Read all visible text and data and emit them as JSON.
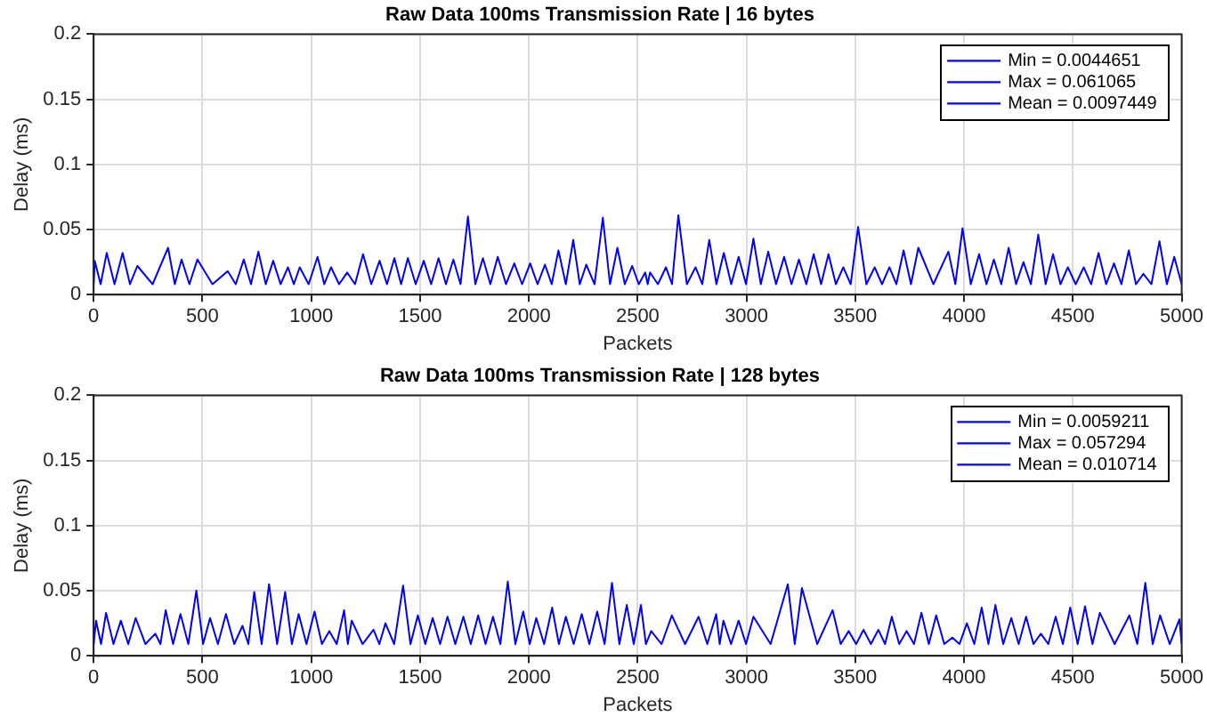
{
  "chart_data": [
    {
      "type": "line",
      "title": "Raw Data 100ms Transmission Rate | 16 bytes",
      "xlabel": "Packets",
      "ylabel": "Delay (ms)",
      "xlim": [
        0,
        5000
      ],
      "xticks": [
        0,
        500,
        1000,
        1500,
        2000,
        2500,
        3000,
        3500,
        4000,
        4500,
        5000
      ],
      "ylim": [
        0,
        0.2
      ],
      "yticks": [
        0,
        0.05,
        0.1,
        0.15,
        0.2
      ],
      "grid": true,
      "legend": "top right",
      "marker": "none",
      "line_style": "solid",
      "series": [
        {
          "name": "Min = 0.0044651",
          "color": "#0000ff",
          "x": [
            0,
            5,
            32,
            60,
            96,
            133,
            167,
            201,
            271,
            342,
            373,
            404,
            440,
            477,
            546,
            616,
            653,
            690,
            723,
            757,
            791,
            825,
            859,
            893,
            920,
            947,
            988,
            1029,
            1060,
            1091,
            1128,
            1165,
            1201,
            1238,
            1276,
            1314,
            1348,
            1382,
            1413,
            1444,
            1480,
            1517,
            1551,
            1585,
            1619,
            1653,
            1686,
            1720,
            1754,
            1789,
            1823,
            1857,
            1895,
            1933,
            1969,
            2006,
            2040,
            2074,
            2105,
            2136,
            2170,
            2204,
            2234,
            2264,
            2302,
            2340,
            2373,
            2407,
            2441,
            2475,
            2505,
            2535,
            2546,
            2557,
            2593,
            2630,
            2658,
            2687,
            2726,
            2766,
            2797,
            2829,
            2862,
            2896,
            2930,
            2964,
            2998,
            3032,
            3066,
            3100,
            3136,
            3173,
            3207,
            3241,
            3275,
            3309,
            3343,
            3377,
            3411,
            3445,
            3479,
            3513,
            3551,
            3589,
            3623,
            3657,
            3689,
            3722,
            3756,
            3790,
            3859,
            3928,
            3960,
            3993,
            4031,
            4069,
            4103,
            4137,
            4171,
            4205,
            4239,
            4273,
            4307,
            4341,
            4375,
            4409,
            4443,
            4477,
            4513,
            4550,
            4584,
            4618,
            4653,
            4689,
            4723,
            4757,
            4790,
            4824,
            4861,
            4898,
            4932,
            4966,
            5000
          ],
          "values": [
            0.008,
            0.026,
            0.008,
            0.032,
            0.008,
            0.032,
            0.008,
            0.022,
            0.008,
            0.036,
            0.008,
            0.027,
            0.008,
            0.027,
            0.008,
            0.018,
            0.008,
            0.027,
            0.008,
            0.033,
            0.008,
            0.026,
            0.008,
            0.021,
            0.008,
            0.021,
            0.008,
            0.029,
            0.008,
            0.021,
            0.008,
            0.017,
            0.008,
            0.031,
            0.008,
            0.026,
            0.008,
            0.028,
            0.008,
            0.028,
            0.008,
            0.026,
            0.008,
            0.028,
            0.008,
            0.027,
            0.008,
            0.06,
            0.008,
            0.028,
            0.008,
            0.029,
            0.008,
            0.024,
            0.008,
            0.024,
            0.008,
            0.023,
            0.008,
            0.034,
            0.008,
            0.042,
            0.008,
            0.023,
            0.008,
            0.059,
            0.008,
            0.036,
            0.008,
            0.022,
            0.008,
            0.017,
            0.008,
            0.017,
            0.008,
            0.021,
            0.008,
            0.061,
            0.008,
            0.021,
            0.008,
            0.042,
            0.008,
            0.032,
            0.008,
            0.029,
            0.008,
            0.043,
            0.008,
            0.033,
            0.008,
            0.029,
            0.008,
            0.027,
            0.008,
            0.031,
            0.008,
            0.031,
            0.008,
            0.021,
            0.008,
            0.052,
            0.008,
            0.021,
            0.008,
            0.021,
            0.008,
            0.034,
            0.008,
            0.036,
            0.008,
            0.033,
            0.008,
            0.051,
            0.008,
            0.031,
            0.008,
            0.027,
            0.008,
            0.036,
            0.008,
            0.025,
            0.008,
            0.046,
            0.008,
            0.031,
            0.008,
            0.021,
            0.008,
            0.021,
            0.008,
            0.032,
            0.008,
            0.024,
            0.008,
            0.034,
            0.008,
            0.016,
            0.008,
            0.041,
            0.008,
            0.029,
            0.008
          ]
        },
        {
          "name": "Max = 0.061065",
          "color": "#0000ff"
        },
        {
          "name": "Mean = 0.0097449",
          "color": "#0000ff"
        }
      ]
    },
    {
      "type": "line",
      "title": "Raw Data 100ms Transmission Rate | 128 bytes",
      "xlabel": "Packets",
      "ylabel": "Delay (ms)",
      "xlim": [
        0,
        5000
      ],
      "xticks": [
        0,
        500,
        1000,
        1500,
        2000,
        2500,
        3000,
        3500,
        4000,
        4500,
        5000
      ],
      "ylim": [
        0,
        0.2
      ],
      "yticks": [
        0,
        0.05,
        0.1,
        0.15,
        0.2
      ],
      "grid": true,
      "legend": "top right",
      "marker": "none",
      "line_style": "solid",
      "series": [
        {
          "name": "Min = 0.0059211",
          "color": "#0000ff",
          "x": [
            0,
            11,
            34,
            57,
            91,
            125,
            159,
            193,
            238,
            283,
            307,
            331,
            365,
            399,
            435,
            472,
            503,
            535,
            571,
            608,
            646,
            684,
            711,
            738,
            772,
            806,
            843,
            880,
            911,
            942,
            978,
            1015,
            1049,
            1083,
            1117,
            1151,
            1168,
            1186,
            1236,
            1286,
            1313,
            1341,
            1381,
            1422,
            1456,
            1490,
            1524,
            1558,
            1592,
            1626,
            1662,
            1699,
            1733,
            1767,
            1801,
            1835,
            1869,
            1903,
            1938,
            1974,
            2004,
            2034,
            2070,
            2107,
            2138,
            2170,
            2206,
            2243,
            2278,
            2314,
            2348,
            2382,
            2416,
            2450,
            2482,
            2515,
            2538,
            2562,
            2610,
            2657,
            2718,
            2780,
            2820,
            2861,
            2877,
            2894,
            2929,
            2964,
            2998,
            3032,
            3111,
            3190,
            3222,
            3255,
            3325,
            3396,
            3433,
            3470,
            3504,
            3538,
            3572,
            3606,
            3637,
            3668,
            3702,
            3736,
            3770,
            3804,
            3838,
            3872,
            3909,
            3946,
            3979,
            4013,
            4047,
            4081,
            4112,
            4144,
            4180,
            4217,
            4251,
            4285,
            4319,
            4353,
            4387,
            4421,
            4454,
            4488,
            4522,
            4556,
            4590,
            4624,
            4692,
            4760,
            4796,
            4833,
            4867,
            4901,
            4945,
            4990,
            5000
          ],
          "values": [
            0.009,
            0.027,
            0.009,
            0.033,
            0.009,
            0.027,
            0.009,
            0.029,
            0.009,
            0.017,
            0.009,
            0.035,
            0.009,
            0.032,
            0.009,
            0.05,
            0.009,
            0.029,
            0.009,
            0.032,
            0.009,
            0.023,
            0.009,
            0.049,
            0.009,
            0.055,
            0.009,
            0.049,
            0.009,
            0.032,
            0.009,
            0.034,
            0.009,
            0.019,
            0.009,
            0.035,
            0.009,
            0.027,
            0.009,
            0.02,
            0.009,
            0.025,
            0.009,
            0.054,
            0.009,
            0.031,
            0.009,
            0.029,
            0.009,
            0.03,
            0.009,
            0.03,
            0.009,
            0.031,
            0.009,
            0.03,
            0.009,
            0.057,
            0.009,
            0.034,
            0.009,
            0.029,
            0.009,
            0.037,
            0.009,
            0.03,
            0.009,
            0.032,
            0.009,
            0.034,
            0.009,
            0.056,
            0.009,
            0.039,
            0.009,
            0.039,
            0.009,
            0.019,
            0.009,
            0.031,
            0.009,
            0.03,
            0.009,
            0.032,
            0.009,
            0.027,
            0.009,
            0.027,
            0.009,
            0.03,
            0.009,
            0.055,
            0.009,
            0.052,
            0.009,
            0.035,
            0.009,
            0.019,
            0.009,
            0.02,
            0.009,
            0.02,
            0.009,
            0.03,
            0.009,
            0.019,
            0.009,
            0.033,
            0.009,
            0.031,
            0.009,
            0.014,
            0.009,
            0.025,
            0.009,
            0.037,
            0.009,
            0.039,
            0.009,
            0.029,
            0.009,
            0.03,
            0.009,
            0.017,
            0.009,
            0.03,
            0.009,
            0.037,
            0.009,
            0.038,
            0.009,
            0.033,
            0.009,
            0.031,
            0.009,
            0.056,
            0.009,
            0.031,
            0.009,
            0.028,
            0.009
          ]
        },
        {
          "name": "Max = 0.057294",
          "color": "#0000ff"
        },
        {
          "name": "Mean = 0.010714",
          "color": "#0000ff"
        }
      ]
    }
  ]
}
